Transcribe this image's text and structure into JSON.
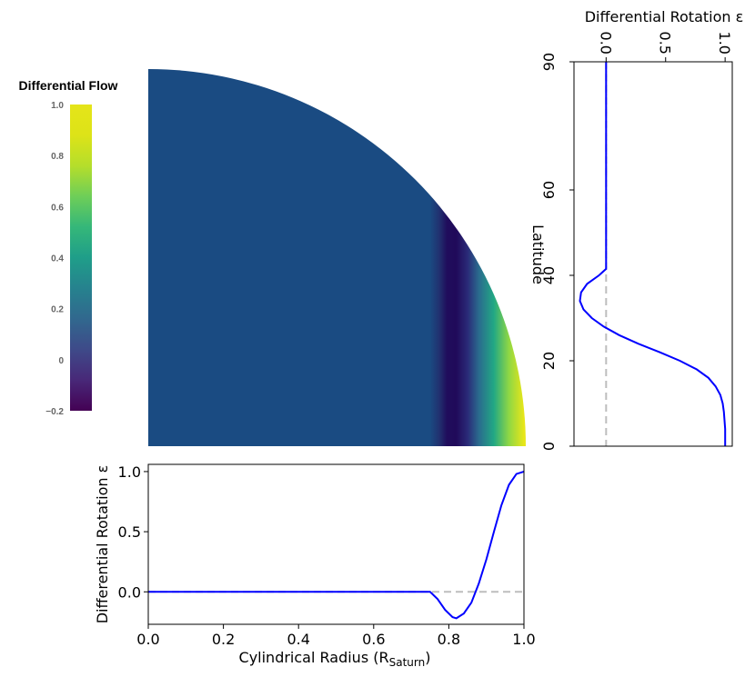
{
  "chart_data": [
    {
      "type": "heatmap",
      "name": "quarter-disk-flow",
      "colorbar": {
        "title": "Differential Flow",
        "ticks": [
          "1.0",
          "0.8",
          "0.6",
          "0.4",
          "0.2",
          "0",
          "−0.2"
        ],
        "range": [
          -0.2,
          1.0
        ],
        "colormap": "viridis"
      },
      "background_value": 0.0
    },
    {
      "type": "line",
      "name": "radius-profile",
      "xlabel": "Cylindrical Radius",
      "xlabel_sub": "Saturn",
      "ylabel": "Differential Rotation ε",
      "xlim": [
        0.0,
        1.0
      ],
      "ylim": [
        -0.27,
        1.06
      ],
      "xticks": [
        "0.0",
        "0.2",
        "0.4",
        "0.6",
        "0.8",
        "1.0"
      ],
      "yticks": [
        "0.0",
        "0.5",
        "1.0"
      ],
      "series": [
        {
          "color": "#0000ff",
          "x": [
            0.0,
            0.75,
            0.77,
            0.79,
            0.81,
            0.82,
            0.84,
            0.86,
            0.88,
            0.9,
            0.92,
            0.94,
            0.96,
            0.98,
            1.0
          ],
          "y": [
            0.0,
            0.0,
            -0.06,
            -0.15,
            -0.21,
            -0.22,
            -0.18,
            -0.09,
            0.07,
            0.27,
            0.5,
            0.72,
            0.89,
            0.98,
            1.0
          ]
        }
      ]
    },
    {
      "type": "line",
      "name": "latitude-profile",
      "xlabel": "Differential Rotation ε",
      "ylabel": "Latitude",
      "xlim": [
        -0.27,
        1.06
      ],
      "ylim": [
        0,
        90
      ],
      "xticks": [
        "0.0",
        "0.5",
        "1.0"
      ],
      "yticks": [
        "0",
        "20",
        "40",
        "60",
        "90"
      ],
      "series": [
        {
          "color": "#0000ff",
          "lat": [
            0,
            4,
            8,
            10,
            12,
            14,
            16,
            18,
            20,
            22,
            24,
            26,
            28,
            30,
            32,
            34,
            36,
            38,
            40,
            41.5,
            45,
            60,
            90
          ],
          "val": [
            1.0,
            1.0,
            0.99,
            0.98,
            0.96,
            0.92,
            0.86,
            0.76,
            0.62,
            0.45,
            0.27,
            0.11,
            -0.02,
            -0.12,
            -0.19,
            -0.22,
            -0.21,
            -0.16,
            -0.06,
            0.0,
            0.0,
            0.0,
            0.0
          ]
        }
      ]
    }
  ]
}
